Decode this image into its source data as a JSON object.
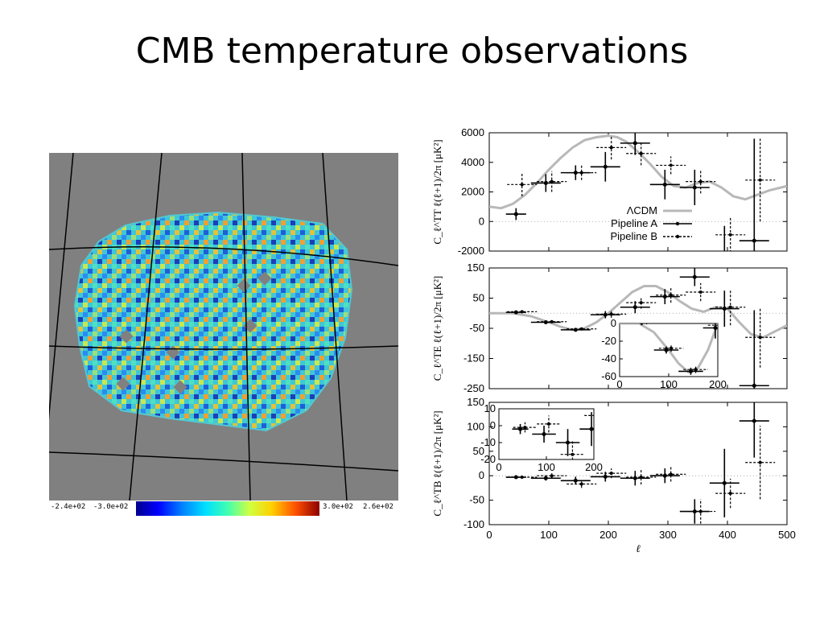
{
  "title": "CMB temperature observations",
  "map": {
    "colorbar_labels": {
      "min1": "-2.4e+02",
      "min2": "-3.0e+02",
      "max1": "3.0e+02",
      "max2": "2.6e+02"
    },
    "colors": {
      "background": "#808080",
      "cool": "#1e5fd8",
      "warm": "#e2c23a"
    }
  },
  "chart_data": [
    {
      "type": "scatter",
      "panel": "TT",
      "ylabel": "C_ℓ^TT ℓ(ℓ+1)/2π [μK²]",
      "xlim": [
        0,
        500
      ],
      "ylim": [
        -2000,
        6000
      ],
      "yticks": [
        "6000",
        "4000",
        "2000",
        "0",
        "-2000"
      ],
      "legend": [
        {
          "name": "ΛCDM",
          "style": "gray-solid"
        },
        {
          "name": "Pipeline A",
          "style": "solid"
        },
        {
          "name": "Pipeline B",
          "style": "dashed"
        }
      ],
      "model": {
        "name": "ΛCDM",
        "x": [
          0,
          20,
          40,
          60,
          80,
          100,
          120,
          140,
          160,
          180,
          200,
          215,
          230,
          250,
          270,
          290,
          310,
          330,
          350,
          370,
          390,
          410,
          430,
          450,
          470,
          500
        ],
        "y": [
          1000,
          900,
          1200,
          1800,
          2600,
          3500,
          4300,
          5000,
          5500,
          5700,
          5800,
          5700,
          5400,
          4700,
          3900,
          3000,
          2400,
          2300,
          2600,
          2700,
          2300,
          1700,
          1500,
          1800,
          2100,
          2400
        ]
      },
      "series": [
        {
          "name": "Pipeline A",
          "points": [
            {
              "x": 45,
              "y": 500,
              "xerr": 17,
              "yerr": 400
            },
            {
              "x": 95,
              "y": 2600,
              "xerr": 25,
              "yerr": 600
            },
            {
              "x": 145,
              "y": 3300,
              "xerr": 25,
              "yerr": 500
            },
            {
              "x": 195,
              "y": 3700,
              "xerr": 25,
              "yerr": 1000
            },
            {
              "x": 245,
              "y": 5300,
              "xerr": 25,
              "yerr": 800
            },
            {
              "x": 295,
              "y": 2500,
              "xerr": 25,
              "yerr": 1000
            },
            {
              "x": 345,
              "y": 2300,
              "xerr": 25,
              "yerr": 1200
            },
            {
              "x": 395,
              "y": -2300,
              "xerr": 25,
              "yerr": 2000
            },
            {
              "x": 445,
              "y": -1300,
              "xerr": 25,
              "yerr": 6900
            }
          ]
        },
        {
          "name": "Pipeline B",
          "points": [
            {
              "x": 55,
              "y": 2500,
              "xerr": 25,
              "yerr": 800
            },
            {
              "x": 105,
              "y": 2700,
              "xerr": 25,
              "yerr": 700
            },
            {
              "x": 155,
              "y": 3300,
              "xerr": 25,
              "yerr": 500
            },
            {
              "x": 205,
              "y": 5000,
              "xerr": 25,
              "yerr": 800
            },
            {
              "x": 255,
              "y": 4600,
              "xerr": 25,
              "yerr": 800
            },
            {
              "x": 305,
              "y": 3800,
              "xerr": 25,
              "yerr": 600
            },
            {
              "x": 355,
              "y": 2700,
              "xerr": 25,
              "yerr": 800
            },
            {
              "x": 405,
              "y": -900,
              "xerr": 25,
              "yerr": 1200
            },
            {
              "x": 455,
              "y": 2800,
              "xerr": 25,
              "yerr": 2800
            }
          ]
        }
      ]
    },
    {
      "type": "scatter",
      "panel": "TE",
      "ylabel": "C_ℓ^TE ℓ(ℓ+1)/2π [μK²]",
      "xlim": [
        0,
        500
      ],
      "ylim": [
        -250,
        150
      ],
      "yticks": [
        "150",
        "50",
        "-50",
        "-150",
        "-250"
      ],
      "model": {
        "name": "ΛCDM",
        "x": [
          0,
          40,
          70,
          100,
          120,
          140,
          160,
          180,
          200,
          220,
          240,
          260,
          280,
          300,
          320,
          340,
          360,
          380,
          400,
          420,
          440,
          460,
          480,
          500
        ],
        "y": [
          0,
          0,
          -10,
          -30,
          -45,
          -55,
          -50,
          -30,
          0,
          35,
          70,
          90,
          90,
          70,
          40,
          15,
          5,
          20,
          15,
          -30,
          -70,
          -80,
          -60,
          -40
        ]
      },
      "series": [
        {
          "name": "Pipeline A",
          "points": [
            {
              "x": 45,
              "y": 3,
              "xerr": 17,
              "yerr": 5
            },
            {
              "x": 95,
              "y": -30,
              "xerr": 25,
              "yerr": 5
            },
            {
              "x": 145,
              "y": -55,
              "xerr": 25,
              "yerr": 5
            },
            {
              "x": 195,
              "y": -5,
              "xerr": 25,
              "yerr": 12
            },
            {
              "x": 245,
              "y": 20,
              "xerr": 25,
              "yerr": 20
            },
            {
              "x": 295,
              "y": 55,
              "xerr": 25,
              "yerr": 25
            },
            {
              "x": 345,
              "y": 120,
              "xerr": 25,
              "yerr": 30
            },
            {
              "x": 395,
              "y": 15,
              "xerr": 25,
              "yerr": 60
            },
            {
              "x": 445,
              "y": -240,
              "xerr": 25,
              "yerr": 250
            }
          ]
        },
        {
          "name": "Pipeline B",
          "points": [
            {
              "x": 55,
              "y": 5,
              "xerr": 25,
              "yerr": 5
            },
            {
              "x": 105,
              "y": -28,
              "xerr": 25,
              "yerr": 5
            },
            {
              "x": 155,
              "y": -52,
              "xerr": 25,
              "yerr": 5
            },
            {
              "x": 205,
              "y": -3,
              "xerr": 25,
              "yerr": 12
            },
            {
              "x": 255,
              "y": 35,
              "xerr": 25,
              "yerr": 20
            },
            {
              "x": 305,
              "y": 60,
              "xerr": 25,
              "yerr": 25
            },
            {
              "x": 355,
              "y": 70,
              "xerr": 25,
              "yerr": 30
            },
            {
              "x": 405,
              "y": 20,
              "xerr": 25,
              "yerr": 60
            },
            {
              "x": 455,
              "y": -80,
              "xerr": 25,
              "yerr": 100
            }
          ]
        }
      ],
      "inset": {
        "xlim": [
          0,
          200
        ],
        "ylim": [
          -60,
          0
        ],
        "xticks": [
          "0",
          "100",
          "200"
        ],
        "yticks": [
          "0",
          "-20",
          "-40",
          "-60"
        ],
        "model_x": [
          0,
          40,
          70,
          100,
          120,
          140,
          160,
          180,
          200
        ],
        "model_y": [
          0,
          0,
          -10,
          -30,
          -45,
          -55,
          -50,
          -30,
          0
        ],
        "series": [
          {
            "name": "Pipeline A",
            "points": [
              {
                "x": 45,
                "y": 1,
                "xerr": 17,
                "yerr": 3
              },
              {
                "x": 95,
                "y": -30,
                "xerr": 25,
                "yerr": 4
              },
              {
                "x": 145,
                "y": -54,
                "xerr": 25,
                "yerr": 4
              },
              {
                "x": 195,
                "y": -5,
                "xerr": 25,
                "yerr": 12
              }
            ]
          },
          {
            "name": "Pipeline B",
            "points": [
              {
                "x": 55,
                "y": 2,
                "xerr": 25,
                "yerr": 3
              },
              {
                "x": 105,
                "y": -28,
                "xerr": 25,
                "yerr": 4
              },
              {
                "x": 155,
                "y": -52,
                "xerr": 25,
                "yerr": 4
              },
              {
                "x": 205,
                "y": -2,
                "xerr": 25,
                "yerr": 12
              }
            ]
          }
        ]
      }
    },
    {
      "type": "scatter",
      "panel": "TB",
      "ylabel": "C_ℓ^TB ℓ(ℓ+1)/2π [μK²]",
      "xlabel": "ℓ",
      "xlim": [
        0,
        500
      ],
      "ylim": [
        -100,
        150
      ],
      "xticks": [
        "0",
        "100",
        "200",
        "300",
        "400",
        "500"
      ],
      "yticks": [
        "150",
        "100",
        "50",
        "0",
        "-50",
        "-100"
      ],
      "series": [
        {
          "name": "Pipeline A",
          "points": [
            {
              "x": 45,
              "y": -3,
              "xerr": 17,
              "yerr": 3
            },
            {
              "x": 95,
              "y": -5,
              "xerr": 25,
              "yerr": 5
            },
            {
              "x": 145,
              "y": -10,
              "xerr": 25,
              "yerr": 8
            },
            {
              "x": 195,
              "y": -2,
              "xerr": 25,
              "yerr": 10
            },
            {
              "x": 245,
              "y": -5,
              "xerr": 25,
              "yerr": 15
            },
            {
              "x": 295,
              "y": 0,
              "xerr": 25,
              "yerr": 15
            },
            {
              "x": 345,
              "y": -73,
              "xerr": 25,
              "yerr": 25
            },
            {
              "x": 395,
              "y": -15,
              "xerr": 25,
              "yerr": 70
            },
            {
              "x": 445,
              "y": 112,
              "xerr": 25,
              "yerr": 75
            }
          ]
        },
        {
          "name": "Pipeline B",
          "points": [
            {
              "x": 55,
              "y": -3,
              "xerr": 25,
              "yerr": 3
            },
            {
              "x": 105,
              "y": 0,
              "xerr": 25,
              "yerr": 5
            },
            {
              "x": 155,
              "y": -17,
              "xerr": 25,
              "yerr": 8
            },
            {
              "x": 205,
              "y": 5,
              "xerr": 25,
              "yerr": 10
            },
            {
              "x": 255,
              "y": -3,
              "xerr": 25,
              "yerr": 15
            },
            {
              "x": 305,
              "y": 3,
              "xerr": 25,
              "yerr": 15
            },
            {
              "x": 355,
              "y": -73,
              "xerr": 25,
              "yerr": 25
            },
            {
              "x": 405,
              "y": -36,
              "xerr": 25,
              "yerr": 30
            },
            {
              "x": 455,
              "y": 27,
              "xerr": 25,
              "yerr": 75
            }
          ]
        }
      ],
      "inset": {
        "xlim": [
          0,
          200
        ],
        "ylim": [
          -20,
          10
        ],
        "xticks": [
          "0",
          "100",
          "200"
        ],
        "yticks": [
          "10",
          "0",
          "-10",
          "-20"
        ],
        "series": [
          {
            "name": "Pipeline A",
            "points": [
              {
                "x": 45,
                "y": -2,
                "xerr": 17,
                "yerr": 3
              },
              {
                "x": 95,
                "y": -5,
                "xerr": 25,
                "yerr": 5
              },
              {
                "x": 145,
                "y": -10,
                "xerr": 25,
                "yerr": 8
              },
              {
                "x": 195,
                "y": -2,
                "xerr": 25,
                "yerr": 10
              }
            ]
          },
          {
            "name": "Pipeline B",
            "points": [
              {
                "x": 55,
                "y": -1,
                "xerr": 25,
                "yerr": 3
              },
              {
                "x": 105,
                "y": 1,
                "xerr": 25,
                "yerr": 5
              },
              {
                "x": 155,
                "y": -17,
                "xerr": 25,
                "yerr": 8
              },
              {
                "x": 205,
                "y": 6,
                "xerr": 25,
                "yerr": 10
              }
            ]
          }
        ]
      }
    }
  ]
}
